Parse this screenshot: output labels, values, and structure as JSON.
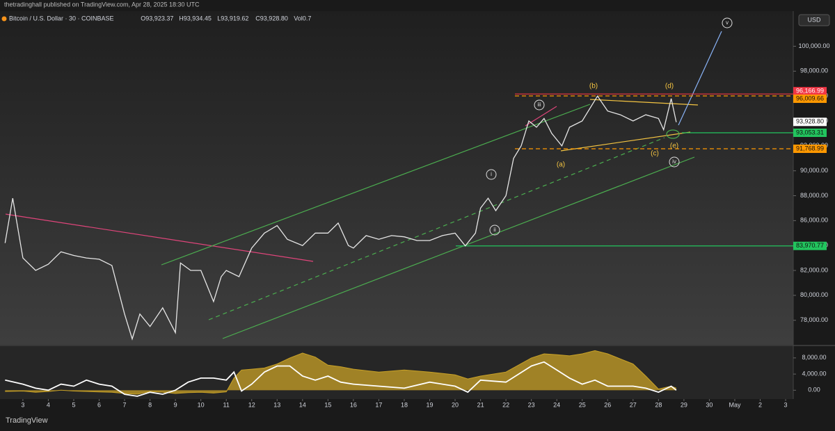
{
  "header": {
    "publisher": "thetradinghall published on TradingView.com, Apr 28, 2025 18:30 UTC",
    "brand": "TradingView"
  },
  "chart_data": [
    {
      "type": "line",
      "title": "Bitcoin / U.S. Dollar · 30 · COINBASE",
      "ohlc": [
        "O93,923.37",
        "H93,934.45",
        "L93,919.62",
        "C93,928.80",
        "Vol0.7"
      ],
      "currency": "USD",
      "color": "#e6e6e6",
      "x": [
        2.3,
        2.6,
        3,
        3.5,
        4,
        4.5,
        5,
        5.5,
        6,
        6.5,
        7,
        7.3,
        7.6,
        8,
        8.5,
        9,
        9.2,
        9.6,
        10,
        10.5,
        10.8,
        11,
        11.5,
        12,
        12.5,
        13,
        13.4,
        14,
        14.5,
        15,
        15.4,
        15.8,
        16,
        16.5,
        17,
        17.5,
        18,
        18.5,
        19,
        19.5,
        20,
        20.4,
        20.8,
        21,
        21.3,
        21.6,
        22,
        22.3,
        22.6,
        22.9,
        23.2,
        23.5,
        23.8,
        24.2,
        24.5,
        25,
        25.6,
        26,
        26.5,
        27,
        27.5,
        28,
        28.2,
        28.5,
        28.7
      ],
      "values": [
        84200,
        87800,
        83000,
        82000,
        82500,
        83500,
        83200,
        83000,
        82900,
        82400,
        78500,
        76500,
        78500,
        77500,
        79000,
        77000,
        82600,
        82000,
        82000,
        79500,
        81500,
        82000,
        81500,
        83800,
        85000,
        85600,
        84500,
        84000,
        85000,
        85000,
        85800,
        84000,
        83800,
        84800,
        84500,
        84800,
        84700,
        84400,
        84400,
        84800,
        85000,
        83970,
        85000,
        87000,
        87800,
        86800,
        88000,
        91000,
        92000,
        94000,
        93500,
        94200,
        93000,
        92000,
        93500,
        94000,
        96000,
        94800,
        94500,
        94000,
        94500,
        94200,
        93300,
        95800,
        93900
      ],
      "xlim": [
        2.1,
        33.3
      ],
      "ylim": [
        76030,
        102820
      ],
      "xticks": [
        3,
        4,
        5,
        6,
        7,
        8,
        9,
        10,
        11,
        12,
        13,
        14,
        15,
        16,
        17,
        18,
        19,
        20,
        21,
        22,
        23,
        24,
        25,
        26,
        27,
        28,
        29,
        30,
        {
          "value": 31,
          "label": "May"
        },
        {
          "value": 32,
          "label": "2"
        },
        {
          "value": 33,
          "label": "3"
        }
      ],
      "yticks": [
        {
          "value": 78000,
          "label": "78,000.00"
        },
        {
          "value": 80000,
          "label": "80,000.00"
        },
        {
          "value": 82000,
          "label": "82,000.00"
        },
        {
          "value": 84000,
          "label": "84,000.00"
        },
        {
          "value": 86000,
          "label": "86,000.00"
        },
        {
          "value": 88000,
          "label": "88,000.00"
        },
        {
          "value": 90000,
          "label": "90,000.00"
        },
        {
          "value": 92000,
          "label": "92,000.00"
        },
        {
          "value": 94000,
          "label": "94,000.00"
        },
        {
          "value": 96000,
          "label": "96,000.00"
        },
        {
          "value": 98000,
          "label": "98,000.00"
        },
        {
          "value": 100000,
          "label": "100,000.00"
        }
      ],
      "levels": [
        {
          "value": 96166.99,
          "label": "96,166.99",
          "color": "#f23645",
          "style": "solid"
        },
        {
          "value": 96009.66,
          "label": "96,009.66",
          "color": "#ff9800",
          "style": "dashed"
        },
        {
          "value": 93928.8,
          "label": "93,928.80",
          "color": "#ffffff",
          "style": "none"
        },
        {
          "value": 93053.31,
          "label": "93,053.31",
          "color": "#22c55e",
          "style": "solid"
        },
        {
          "value": 91768.99,
          "label": "91,768.99",
          "color": "#ff9800",
          "style": "dashed"
        },
        {
          "value": 83970.77,
          "label": "83,970.77",
          "color": "#22c55e",
          "style": "solid"
        }
      ],
      "annotations": [
        "(b)",
        "(d)",
        "(a)",
        "(c)",
        "(e)",
        "iii",
        "i",
        "ii",
        "iv",
        "v"
      ]
    },
    {
      "type": "area",
      "x": [
        2.3,
        3,
        3.5,
        4,
        4.5,
        5,
        5.5,
        6,
        6.5,
        7,
        7.5,
        8,
        8.5,
        9,
        9.5,
        10,
        10.5,
        11,
        11.3,
        11.6,
        12,
        12.5,
        13,
        13.5,
        14,
        14.5,
        15,
        15.5,
        16,
        17,
        18,
        19,
        20,
        20.5,
        21,
        22,
        23,
        23.5,
        24,
        24.5,
        25,
        25.5,
        26,
        27,
        27.5,
        28,
        28.5,
        28.7
      ],
      "series": [
        {
          "color": "#c9a227",
          "fill": true,
          "values": [
            -300,
            -200,
            -500,
            -300,
            0,
            -200,
            -300,
            -400,
            -500,
            -800,
            -1000,
            -300,
            -500,
            -800,
            -600,
            -500,
            -700,
            -400,
            3000,
            5000,
            5200,
            5500,
            6500,
            8000,
            9200,
            8200,
            6200,
            5800,
            5200,
            4500,
            5000,
            4500,
            3800,
            2800,
            3500,
            4500,
            8000,
            9000,
            8800,
            8500,
            9000,
            9800,
            9000,
            6500,
            3500,
            300,
            1000,
            500
          ]
        },
        {
          "color": "#ffffff",
          "fill": false,
          "values": [
            2500,
            1500,
            500,
            0,
            1500,
            1000,
            2500,
            1500,
            1000,
            -1000,
            -1500,
            -500,
            -1000,
            0,
            2000,
            3000,
            3000,
            2500,
            4500,
            -200,
            1500,
            4500,
            6000,
            6000,
            3500,
            2500,
            3500,
            2000,
            1500,
            1000,
            500,
            2000,
            1000,
            -500,
            2500,
            2000,
            6000,
            7000,
            5000,
            3000,
            1500,
            2500,
            1000,
            1000,
            500,
            -500,
            1000,
            0
          ]
        }
      ],
      "xlim": [
        2.1,
        33.3
      ],
      "ylim": [
        -2180,
        10900
      ],
      "yticks": [
        {
          "value": 8000,
          "label": "8,000.00"
        },
        {
          "value": 4000,
          "label": "4,000.00"
        },
        {
          "value": 0,
          "label": "0.00"
        }
      ]
    }
  ]
}
